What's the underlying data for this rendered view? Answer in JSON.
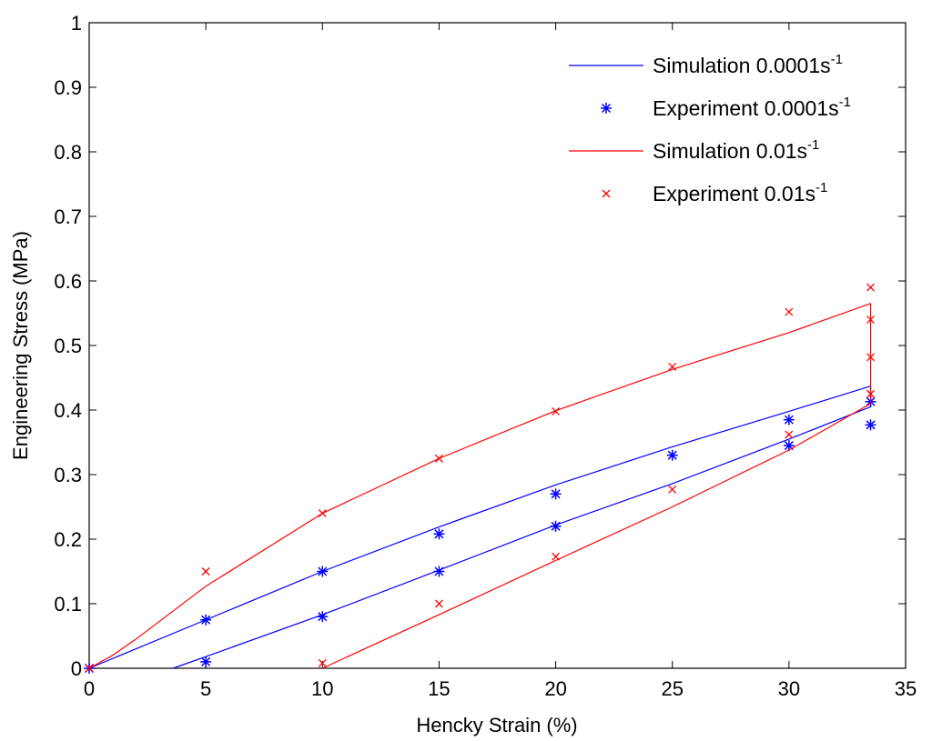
{
  "chart_data": {
    "type": "line",
    "title": "",
    "xlabel": "Hencky Strain (%)",
    "ylabel": "Engineering Stress (MPa)",
    "xlim": [
      0,
      35
    ],
    "ylim": [
      0,
      1
    ],
    "x_ticks": [
      "0",
      "5",
      "10",
      "15",
      "20",
      "25",
      "30",
      "35"
    ],
    "y_ticks": [
      "0",
      "0.1",
      "0.2",
      "0.3",
      "0.4",
      "0.5",
      "0.6",
      "0.7",
      "0.8",
      "0.9",
      "1"
    ],
    "grid": false,
    "legend_position": "top-right",
    "series": [
      {
        "name": "Simulation 0.0001s",
        "name_sup": "-1",
        "kind": "line",
        "color": "#0000ff",
        "points": [
          [
            0,
            0
          ],
          [
            2,
            0.03
          ],
          [
            5,
            0.075
          ],
          [
            10,
            0.15
          ],
          [
            15,
            0.219
          ],
          [
            20,
            0.284
          ],
          [
            25,
            0.343
          ],
          [
            30,
            0.398
          ],
          [
            33.5,
            0.437
          ],
          [
            33.5,
            0.405
          ],
          [
            30,
            0.355
          ],
          [
            25,
            0.286
          ],
          [
            20,
            0.222
          ],
          [
            15,
            0.152
          ],
          [
            10,
            0.083
          ],
          [
            5,
            0.018
          ],
          [
            3.6,
            0
          ]
        ]
      },
      {
        "name": "Experiment 0.0001s",
        "name_sup": "-1",
        "kind": "marker",
        "marker": "asterisk",
        "color": "#0000ff",
        "points": [
          [
            0,
            0
          ],
          [
            5,
            0.075
          ],
          [
            10,
            0.15
          ],
          [
            15,
            0.208
          ],
          [
            20,
            0.27
          ],
          [
            25,
            0.33
          ],
          [
            30,
            0.385
          ],
          [
            33.5,
            0.413
          ],
          [
            33.5,
            0.377
          ],
          [
            30,
            0.345
          ],
          [
            20,
            0.22
          ],
          [
            15,
            0.15
          ],
          [
            10,
            0.08
          ],
          [
            5,
            0.01
          ]
        ]
      },
      {
        "name": "Simulation 0.01s",
        "name_sup": "-1",
        "kind": "line",
        "color": "#ff0000",
        "points": [
          [
            0,
            0
          ],
          [
            1,
            0.02
          ],
          [
            2,
            0.045
          ],
          [
            5,
            0.127
          ],
          [
            10,
            0.24
          ],
          [
            15,
            0.325
          ],
          [
            20,
            0.399
          ],
          [
            25,
            0.463
          ],
          [
            30,
            0.52
          ],
          [
            33.5,
            0.565
          ],
          [
            33.5,
            0.41
          ],
          [
            30,
            0.338
          ],
          [
            25,
            0.25
          ],
          [
            20,
            0.167
          ],
          [
            15,
            0.083
          ],
          [
            10,
            0
          ]
        ]
      },
      {
        "name": "Experiment 0.01s",
        "name_sup": "-1",
        "kind": "marker",
        "marker": "x",
        "color": "#ff0000",
        "points": [
          [
            0,
            0
          ],
          [
            5,
            0.15
          ],
          [
            10,
            0.24
          ],
          [
            15,
            0.325
          ],
          [
            20,
            0.398
          ],
          [
            25,
            0.467
          ],
          [
            30,
            0.552
          ],
          [
            33.5,
            0.59
          ],
          [
            33.5,
            0.54
          ],
          [
            33.5,
            0.482
          ],
          [
            33.5,
            0.425
          ],
          [
            30,
            0.362
          ],
          [
            25,
            0.277
          ],
          [
            20,
            0.173
          ],
          [
            15,
            0.1
          ],
          [
            10,
            0.008
          ]
        ]
      }
    ]
  }
}
